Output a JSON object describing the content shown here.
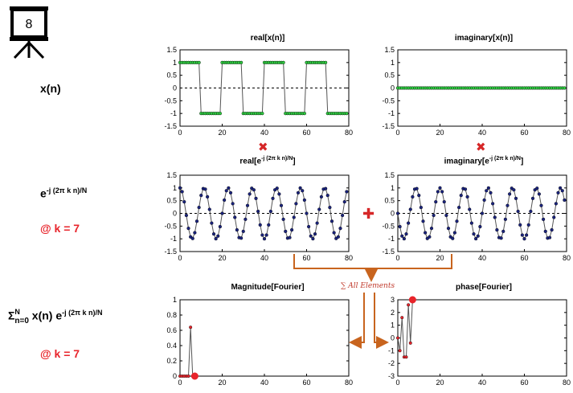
{
  "slide": {
    "number": "8"
  },
  "left_labels": {
    "xn": "x(n)",
    "exp_base": "e",
    "exp_power": "-j (2π k n)/N",
    "k_label_1": "@ k = 7",
    "sum_symbol": "Σ",
    "sum_upper": "N",
    "sum_lower": "n=0",
    "sum_body": " x(n) e",
    "sum_power": "-j (2π k n)/N",
    "k_label_2": "@ k = 7"
  },
  "operators": {
    "multiply": "✖",
    "add": "✚",
    "sum_all": "∑ All Elements"
  },
  "colors": {
    "green_marker": "#2ecc40",
    "blue_marker": "#1a237e",
    "red_marker": "#e8242b",
    "arrow": "#c8641e",
    "operator_red": "#d62728"
  },
  "plots": {
    "real_x": {
      "title": "real[x(n)]"
    },
    "imag_x": {
      "title": "imaginary[x(n)]"
    },
    "real_e": {
      "title_base": "real[e",
      "title_power": "-j (2π k n)/N",
      "title_end": "]"
    },
    "imag_e": {
      "title_base": "imaginary[e",
      "title_power": "-j (2π k n)/N",
      "title_end": "]"
    },
    "mag": {
      "title": "Magnitude[Fourier]"
    },
    "phase": {
      "title": "phase[Fourier]"
    }
  },
  "chart_data": [
    {
      "id": "real_x",
      "type": "line",
      "N": 80,
      "xlim": [
        0,
        80
      ],
      "ylim": [
        -1.5,
        1.5
      ],
      "xticks": [
        0,
        20,
        40,
        60,
        80
      ],
      "yticks": [
        -1.5,
        -1,
        -0.5,
        0,
        0.5,
        1,
        1.5
      ],
      "signal": "square",
      "period": 20,
      "high": 1,
      "low": -1,
      "zero_line": true
    },
    {
      "id": "imag_x",
      "type": "line",
      "N": 80,
      "xlim": [
        0,
        80
      ],
      "ylim": [
        -1.5,
        1.5
      ],
      "xticks": [
        0,
        20,
        40,
        60,
        80
      ],
      "yticks": [
        -1.5,
        -1,
        -0.5,
        0,
        0.5,
        1,
        1.5
      ],
      "signal": "zero",
      "zero_line": true
    },
    {
      "id": "real_e",
      "type": "line",
      "N": 80,
      "k": 7,
      "xlim": [
        0,
        80
      ],
      "ylim": [
        -1.5,
        1.5
      ],
      "xticks": [
        0,
        20,
        40,
        60,
        80
      ],
      "yticks": [
        -1.5,
        -1,
        -0.5,
        0,
        0.5,
        1,
        1.5
      ],
      "signal": "cos",
      "zero_line": true
    },
    {
      "id": "imag_e",
      "type": "line",
      "N": 80,
      "k": 7,
      "xlim": [
        0,
        80
      ],
      "ylim": [
        -1.5,
        1.5
      ],
      "xticks": [
        0,
        20,
        40,
        60,
        80
      ],
      "yticks": [
        -1.5,
        -1,
        -0.5,
        0,
        0.5,
        1,
        1.5
      ],
      "signal": "negsin",
      "zero_line": true
    },
    {
      "id": "mag",
      "type": "line",
      "xlim": [
        0,
        80
      ],
      "ylim": [
        0,
        1
      ],
      "xticks": [
        0,
        20,
        40,
        60,
        80
      ],
      "yticks": [
        0,
        0.2,
        0.4,
        0.6,
        0.8,
        1
      ],
      "x": [
        0,
        1,
        2,
        3,
        4,
        5,
        6,
        7
      ],
      "y": [
        0,
        0,
        0,
        0,
        0,
        0.64,
        0,
        0
      ],
      "highlight": {
        "x": 7,
        "y": 0
      }
    },
    {
      "id": "phase",
      "type": "line",
      "xlim": [
        0,
        80
      ],
      "ylim": [
        -3,
        3
      ],
      "xticks": [
        0,
        20,
        40,
        60,
        80
      ],
      "yticks": [
        -3,
        -2,
        -1,
        0,
        1,
        2,
        3
      ],
      "x": [
        0,
        1,
        2,
        3,
        4,
        5,
        6,
        7
      ],
      "y": [
        0,
        -1,
        1.6,
        -1.5,
        -1.5,
        2.6,
        -0.4,
        3.0
      ],
      "highlight": {
        "x": 7,
        "y": 3.0
      }
    }
  ]
}
